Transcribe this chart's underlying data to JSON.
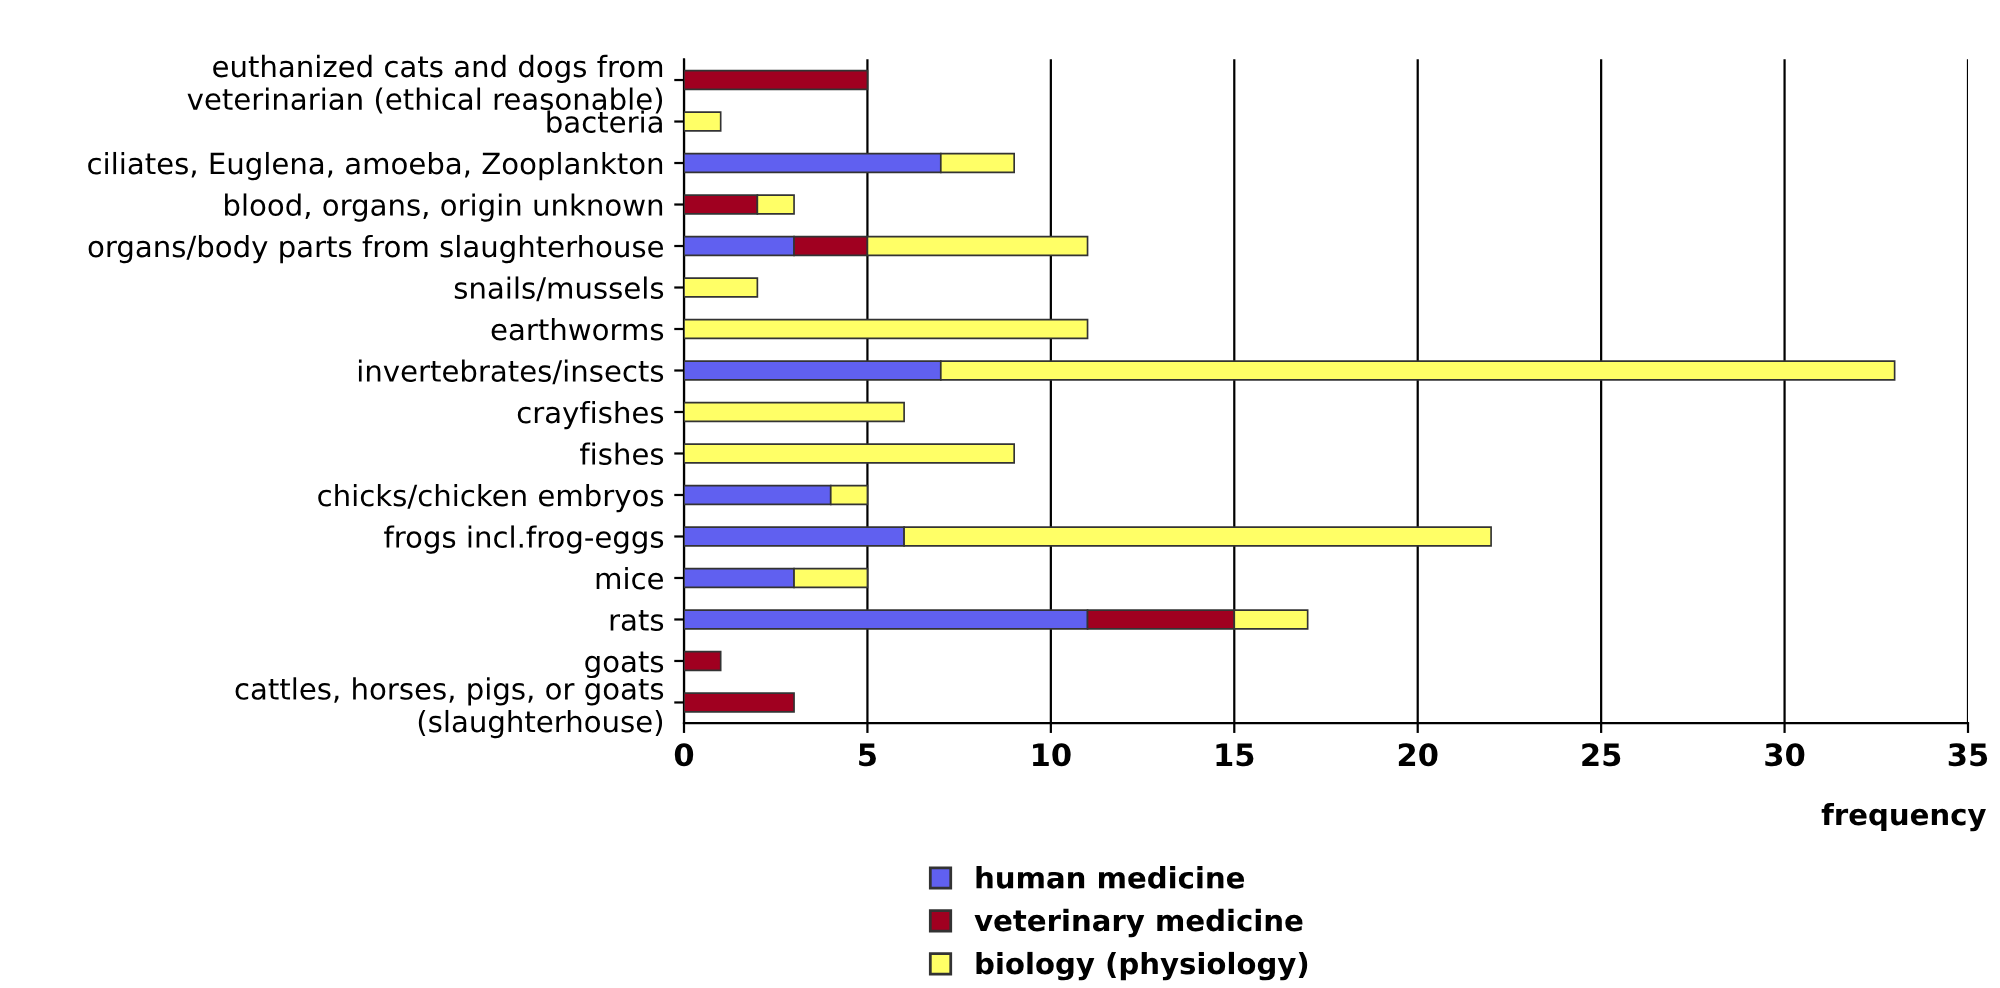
{
  "chart_data": {
    "type": "bar",
    "orientation": "horizontal",
    "stacked": true,
    "xlabel": "frequency",
    "categories": [
      "euthanized cats and dogs from\nveterinarian (ethical reasonable)",
      "bacteria",
      "ciliates, Euglena, amoeba, Zooplankton",
      "blood, organs, origin unknown",
      "organs/body parts from slaughterhouse",
      "snails/mussels",
      "earthworms",
      "invertebrates/insects",
      "crayfishes",
      "fishes",
      "chicks/chicken embryos",
      "frogs incl.frog-eggs",
      "mice",
      "rats",
      "goats",
      "cattles, horses, pigs, or goats\n(slaughterhouse)"
    ],
    "series": [
      {
        "name": "human medicine",
        "color": "#6060f0",
        "values": [
          0,
          0,
          7,
          0,
          3,
          0,
          0,
          7,
          0,
          0,
          4,
          6,
          3,
          11,
          0,
          0
        ]
      },
      {
        "name": "veterinary medicine",
        "color": "#a00020",
        "values": [
          5,
          0,
          0,
          2,
          2,
          0,
          0,
          0,
          0,
          0,
          0,
          0,
          0,
          4,
          1,
          3
        ]
      },
      {
        "name": "biology (physiology)",
        "color": "#ffff66",
        "values": [
          0,
          1,
          2,
          1,
          6,
          2,
          11,
          26,
          6,
          9,
          1,
          16,
          2,
          2,
          0,
          0
        ]
      }
    ],
    "xlim": [
      0,
      35
    ],
    "xticks": [
      0,
      5,
      10,
      15,
      20,
      25,
      30,
      35
    ],
    "grid": "x",
    "legend": "bottom"
  }
}
